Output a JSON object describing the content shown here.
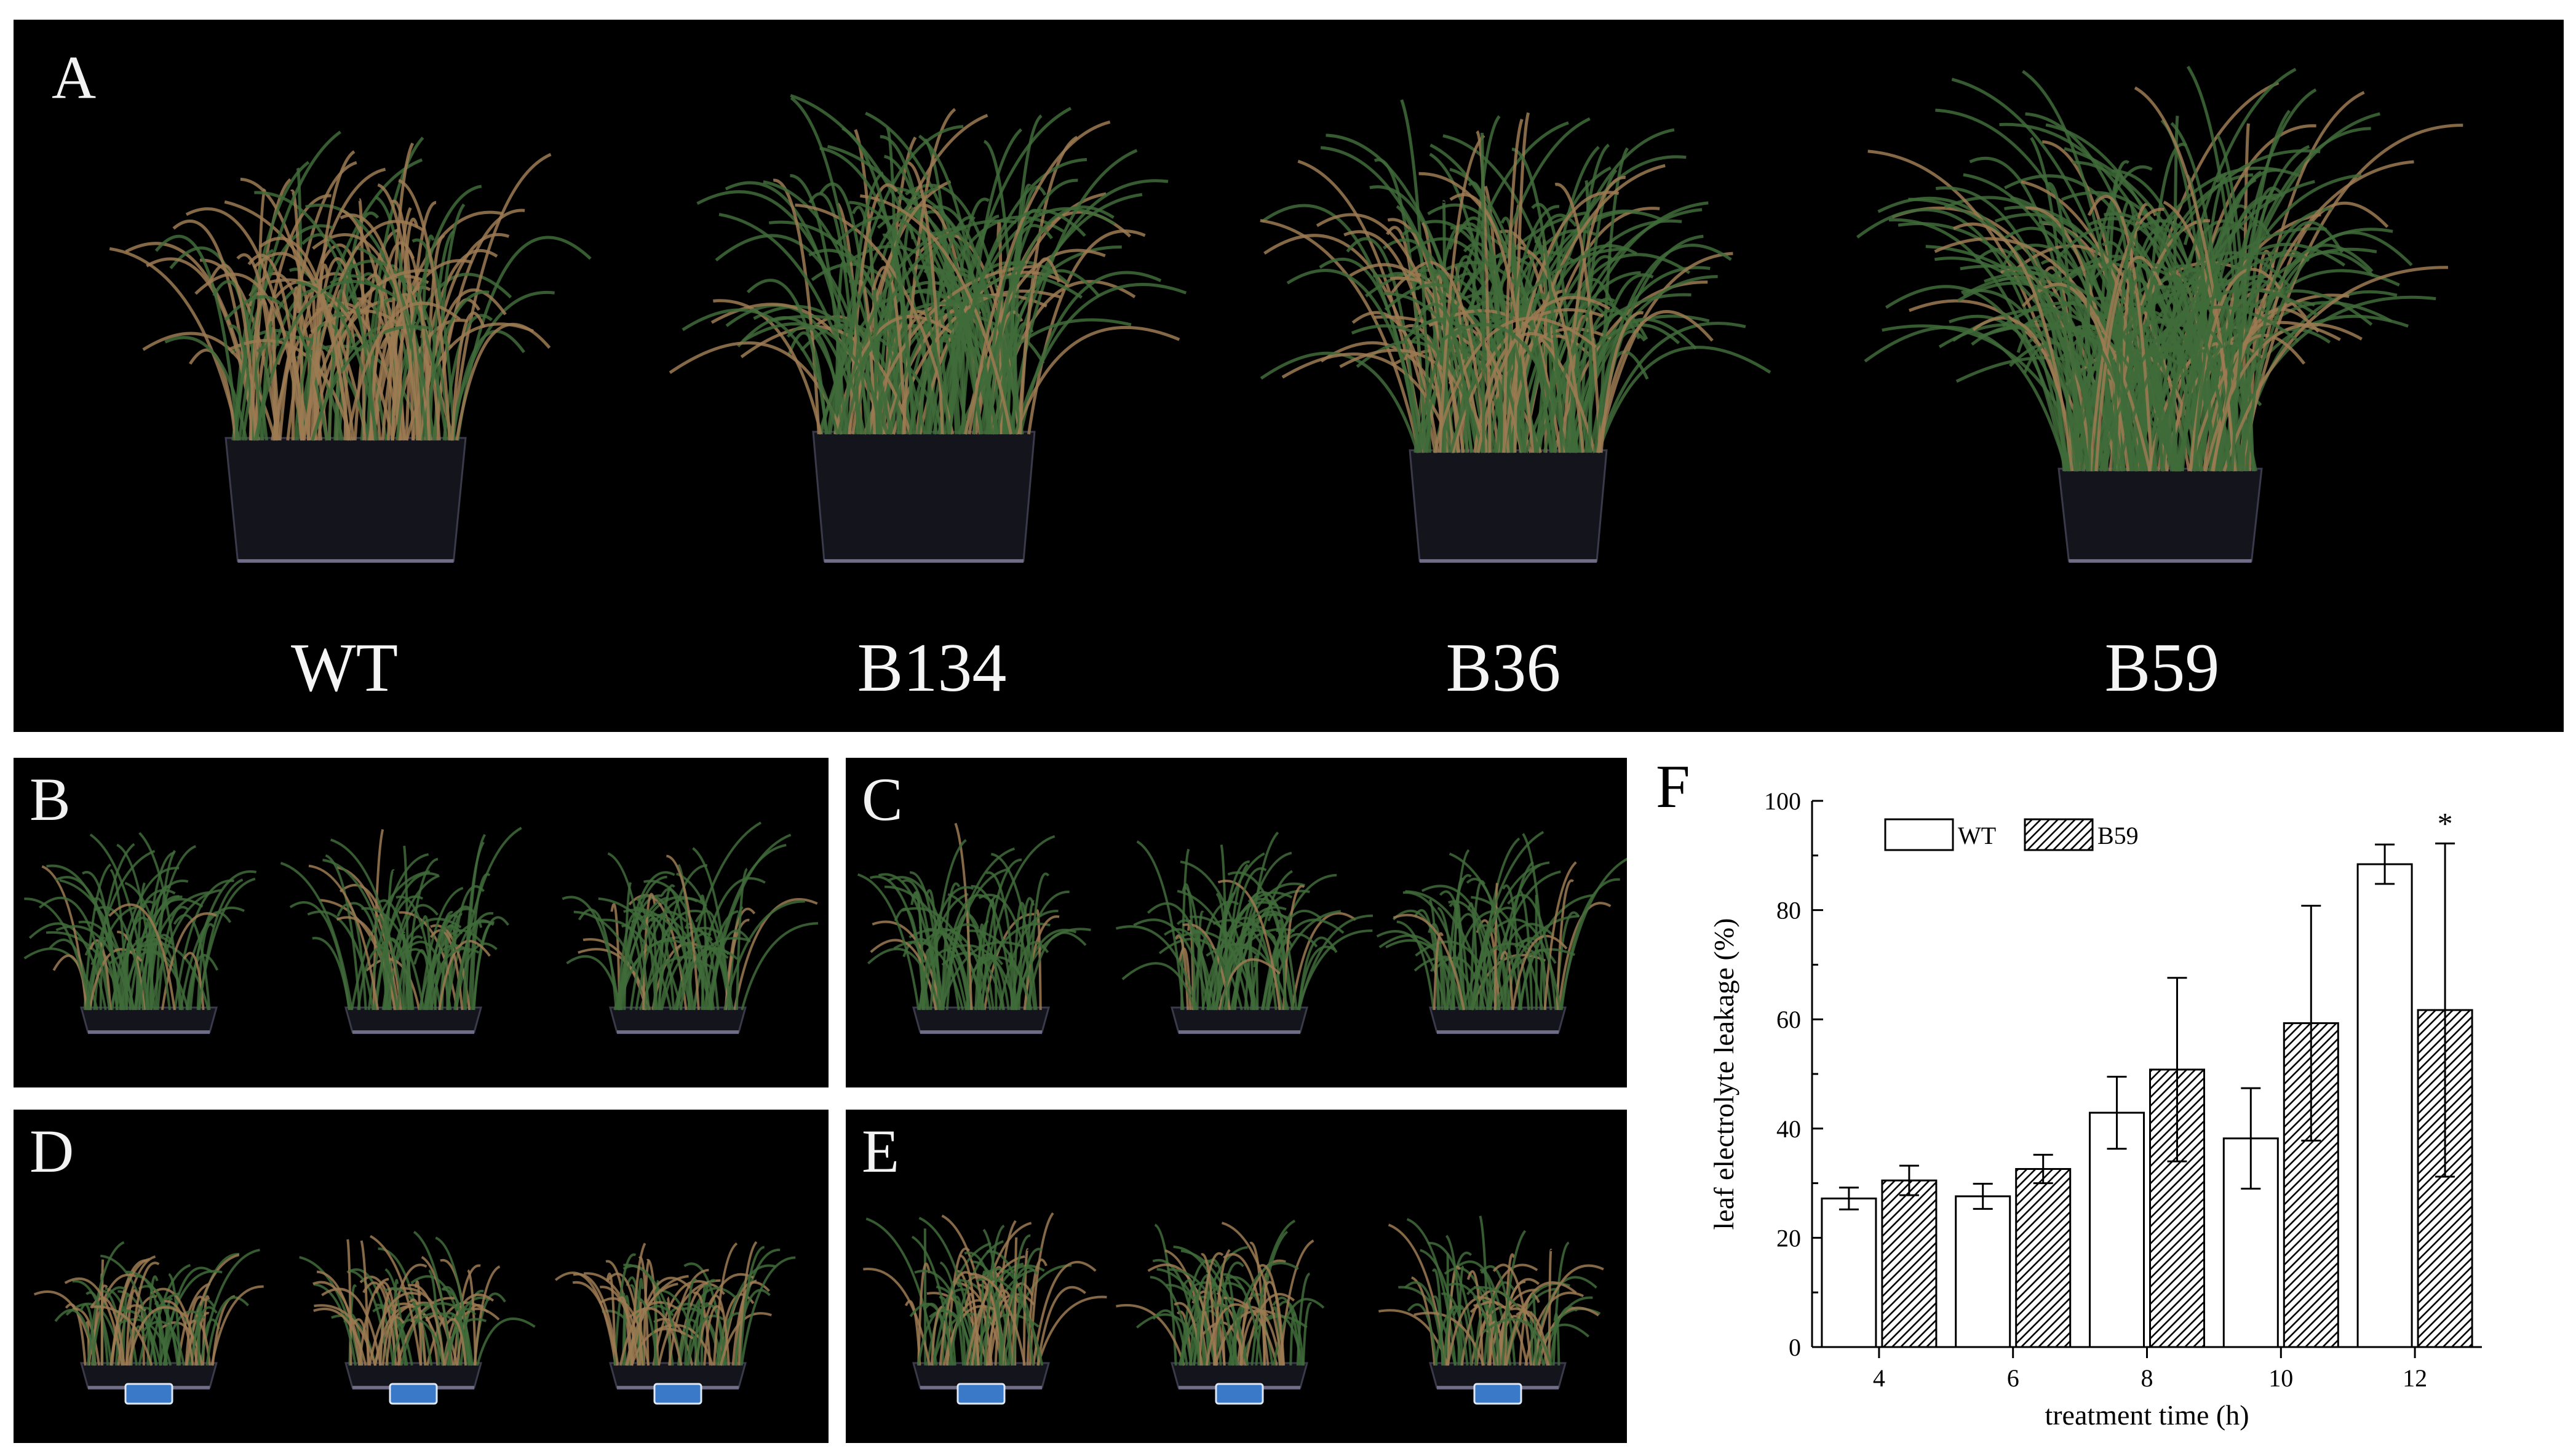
{
  "panels": {
    "a": {
      "letter": "A",
      "labels": [
        "WT",
        "B134",
        "B36",
        "B59"
      ]
    },
    "b": {
      "letter": "B"
    },
    "c": {
      "letter": "C"
    },
    "d": {
      "letter": "D"
    },
    "e": {
      "letter": "E"
    },
    "f": {
      "letter": "F"
    }
  },
  "colors": {
    "grass_green": "#3f6b3a",
    "grass_straw": "#9c7a52",
    "pot": "#14141c",
    "tag_blue": "#3a78c8"
  },
  "chart_data": {
    "type": "bar",
    "categories": [
      "4",
      "6",
      "8",
      "10",
      "12"
    ],
    "series": [
      {
        "name": "WT",
        "pattern": "open",
        "values": [
          27.2,
          27.6,
          42.9,
          38.2,
          88.4
        ],
        "errors": [
          2.0,
          2.3,
          6.6,
          9.2,
          3.6
        ]
      },
      {
        "name": "B59",
        "pattern": "hatched",
        "values": [
          30.5,
          32.6,
          50.8,
          59.3,
          61.7
        ],
        "errors": [
          2.7,
          2.6,
          16.8,
          21.5,
          30.5
        ]
      }
    ],
    "xlabel": "treatment time (h)",
    "ylabel": "leaf electrolyte leakage (%)",
    "ylim": [
      0,
      100
    ],
    "yticks": [
      0,
      20,
      40,
      60,
      80,
      100
    ],
    "annotations": [
      {
        "category": "12",
        "text": "*"
      }
    ],
    "legend_position": "top-left"
  }
}
